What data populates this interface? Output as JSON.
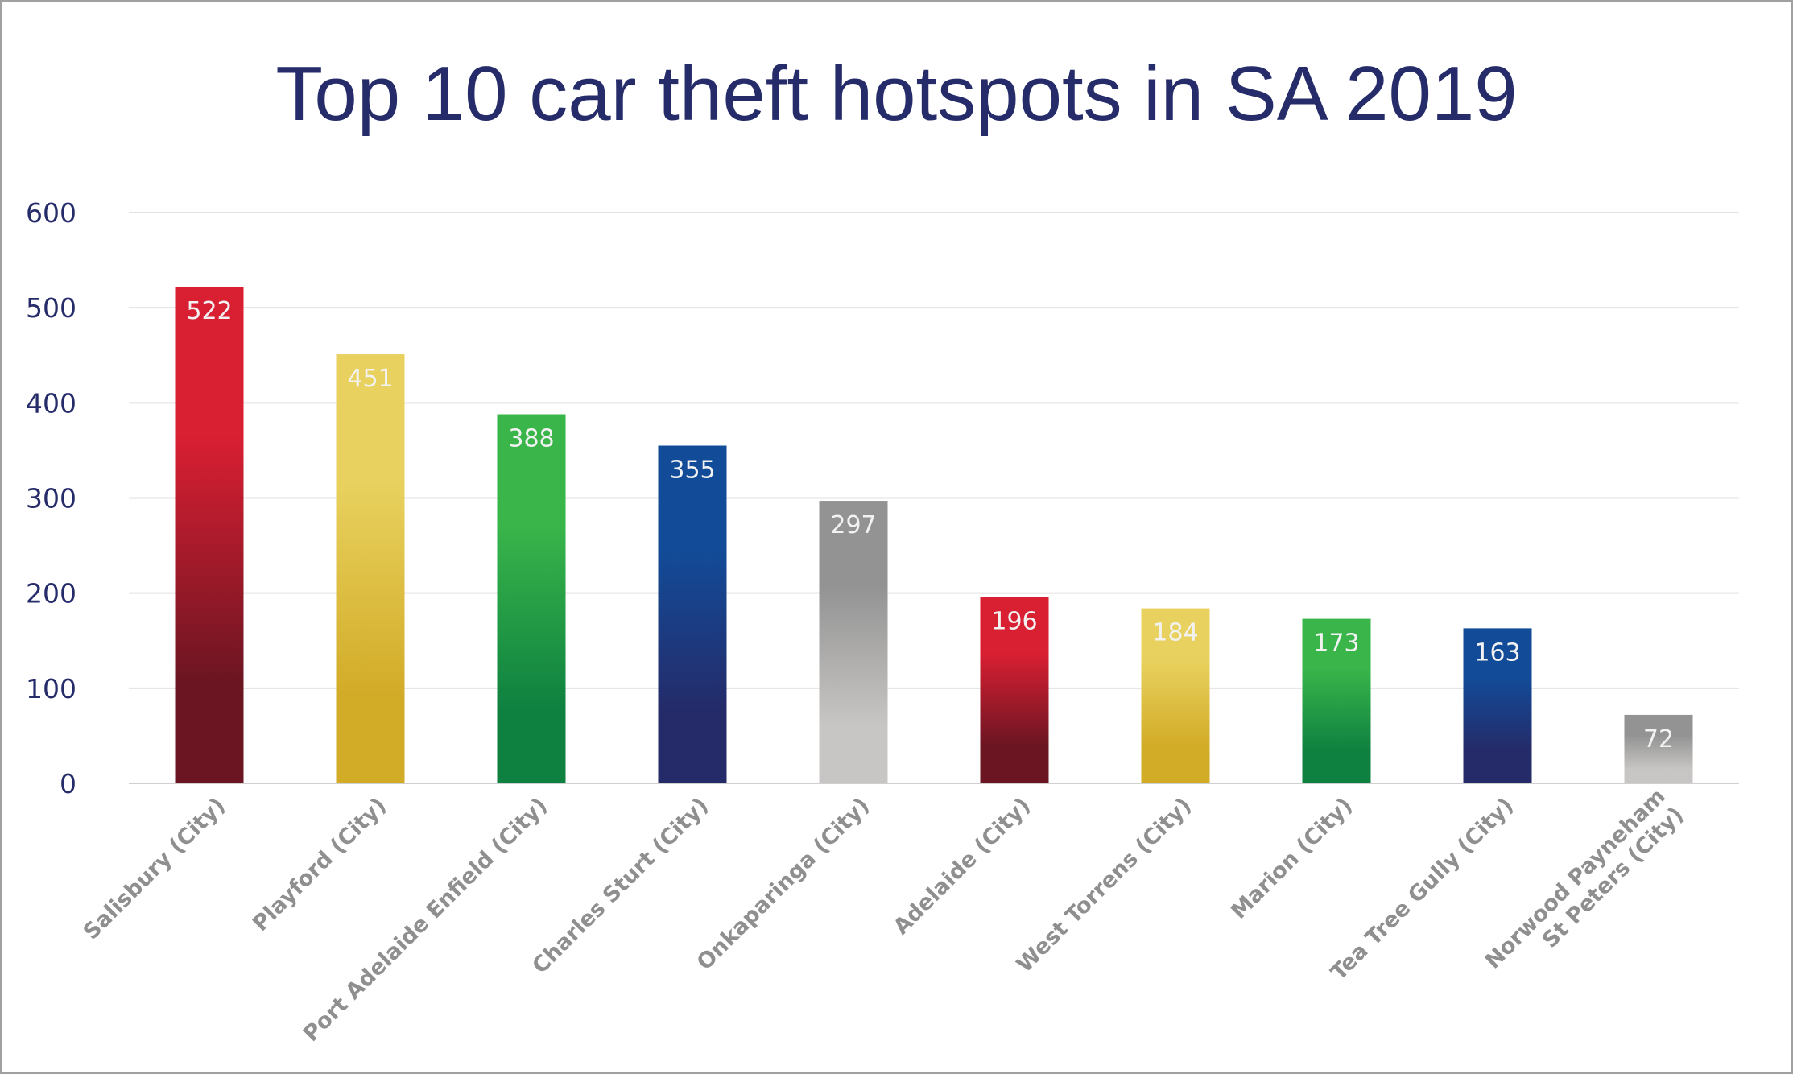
{
  "chart_data": {
    "type": "bar",
    "title": "Top 10 car theft hotspots in SA 2019",
    "xlabel": "",
    "ylabel": "",
    "ylim": [
      0,
      600
    ],
    "yticks": [
      "0",
      "100",
      "200",
      "300",
      "400",
      "500",
      "600"
    ],
    "grid": true,
    "categories": [
      [
        "Salisbury (City)"
      ],
      [
        "Playford (City)"
      ],
      [
        "Port Adelaide Enfield (City)"
      ],
      [
        "Charles Sturt (City)"
      ],
      [
        "Onkaparinga (City)"
      ],
      [
        "Adelaide (City)"
      ],
      [
        "West Torrens (City)"
      ],
      [
        "Marion (City)"
      ],
      [
        "Tea Tree Gully (City)"
      ],
      [
        "Norwood Payneham",
        "St Peters (City)"
      ]
    ],
    "values": [
      522,
      451,
      388,
      355,
      297,
      196,
      184,
      173,
      163,
      72
    ],
    "value_labels": [
      "522",
      "451",
      "388",
      "355",
      "297",
      "196",
      "184",
      "173",
      "163",
      "72"
    ],
    "colors": [
      {
        "top": "#d91f32",
        "bottom": "#6b1522"
      },
      {
        "top": "#e8d15e",
        "bottom": "#d2ab27"
      },
      {
        "top": "#39b54a",
        "bottom": "#0e8140"
      },
      {
        "top": "#124c99",
        "bottom": "#252a68"
      },
      {
        "top": "#939393",
        "bottom": "#c8c6c4"
      },
      {
        "top": "#d91f32",
        "bottom": "#6b1522"
      },
      {
        "top": "#e8d15e",
        "bottom": "#d2ab27"
      },
      {
        "top": "#39b54a",
        "bottom": "#0e8140"
      },
      {
        "top": "#124c99",
        "bottom": "#252a68"
      },
      {
        "top": "#939393",
        "bottom": "#c8c6c4"
      }
    ]
  }
}
